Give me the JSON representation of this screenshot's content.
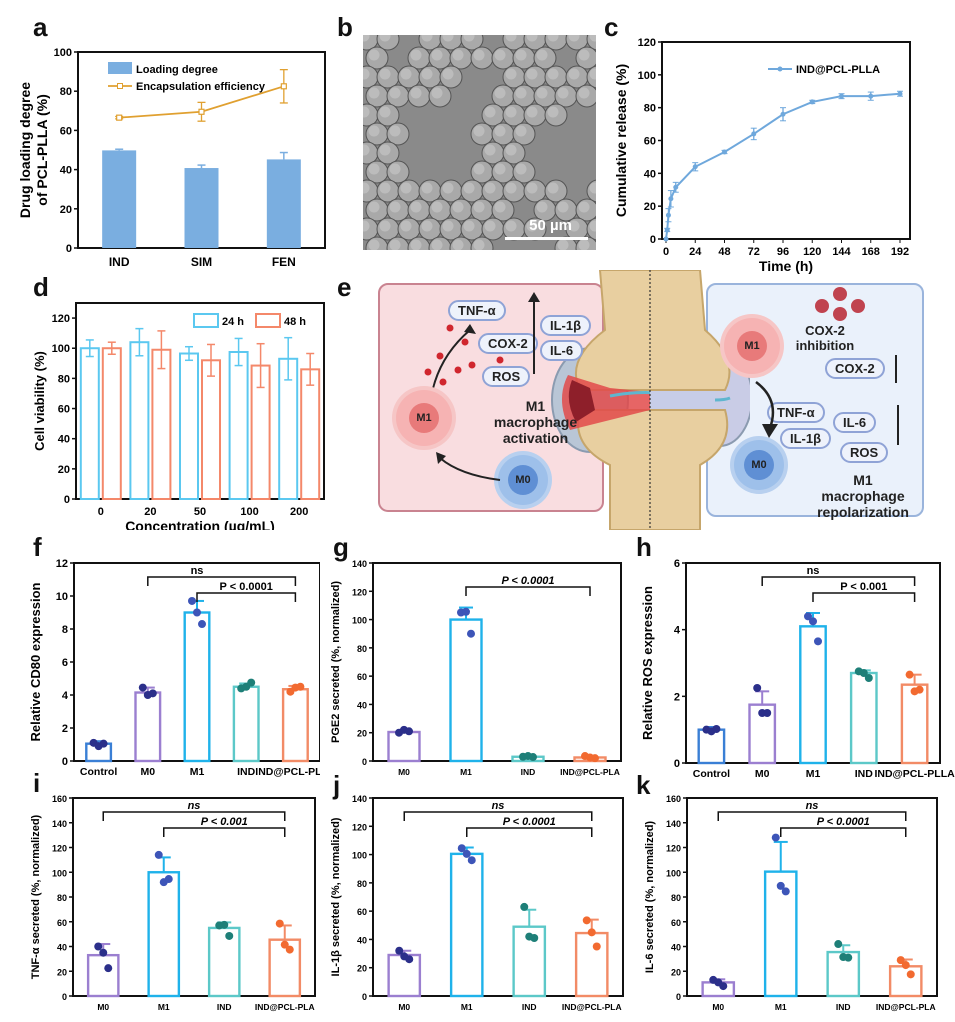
{
  "panel_labels": {
    "a": "a",
    "b": "b",
    "c": "c",
    "d": "d",
    "e": "e",
    "f": "f",
    "g": "g",
    "h": "h",
    "i": "i",
    "j": "j",
    "k": "k"
  },
  "sem_image": {
    "scale_bar": "50 µm"
  },
  "scheme": {
    "left": {
      "pills": [
        "TNF-α",
        "IL-1β",
        "COX-2",
        "IL-6",
        "ROS"
      ],
      "caption": [
        "M1",
        "macrophage",
        "activation"
      ],
      "cells": {
        "m1": "M1",
        "m0": "M0"
      }
    },
    "right": {
      "cox_label": [
        "COX-2",
        "inhibition"
      ],
      "pills": [
        "COX-2",
        "TNF-α",
        "IL-6",
        "IL-1β",
        "ROS"
      ],
      "caption": [
        "M1",
        "macrophage",
        "repolarization"
      ],
      "cells": {
        "m1": "M1",
        "m0": "M0"
      }
    }
  },
  "colors": {
    "blue_bar": "#7aaee0",
    "orange_line": "#e0a030",
    "light_blue": "#6fa8dc",
    "d24": "#5bc8f0",
    "d48": "#f4886a",
    "control": "#3a7fd5",
    "m0": "#9b7fd0",
    "m1": "#1fb2ea",
    "ind": "#5cc8c8",
    "indpcl": "#f28b66",
    "dot_dark": "#2b2f8a",
    "dot_blue": "#3d55b8",
    "dot_teal": "#1e7f78",
    "dot_orange": "#f26a30"
  },
  "chart_data": [
    {
      "id": "a",
      "type": "bar",
      "title": "",
      "categories": [
        "IND",
        "SIM",
        "FEN"
      ],
      "series": [
        {
          "name": "Loading degree",
          "kind": "bar",
          "values": [
            49.8,
            40.8,
            45.2
          ],
          "errors": [
            0.6,
            1.5,
            3.5
          ]
        },
        {
          "name": "Encapsulation efficiency",
          "kind": "line",
          "values": [
            66.5,
            69.5,
            82.5
          ],
          "errors": [
            0.6,
            4.8,
            8.5
          ]
        }
      ],
      "xlabel": "",
      "ylabel": "Drug loading degree of PCL-PLLA (%)",
      "ylabel_lines": [
        "Drug loading degree",
        "of PCL-PLLA (%)"
      ],
      "ylim": [
        0,
        100
      ],
      "yticks": [
        0,
        20,
        40,
        60,
        80,
        100
      ],
      "legend": "top-left",
      "grid": false
    },
    {
      "id": "c",
      "type": "line",
      "x": [
        0,
        1,
        2,
        4,
        8,
        24,
        48,
        72,
        96,
        120,
        144,
        168,
        192
      ],
      "series": [
        {
          "name": "IND@PCL-PLLA",
          "values": [
            0,
            5.5,
            14.5,
            24.5,
            31.5,
            44,
            53,
            64,
            76,
            83.5,
            87,
            87,
            88.5
          ],
          "errors": [
            0,
            1,
            4,
            5,
            3,
            2.5,
            1,
            3.5,
            4,
            1,
            1.5,
            2.5,
            1.5
          ]
        }
      ],
      "xlabel": "Time (h)",
      "ylabel": "Cumulative release (%)",
      "xlim": [
        0,
        192
      ],
      "xticks": [
        0,
        24,
        48,
        72,
        96,
        120,
        144,
        168,
        192
      ],
      "ylim": [
        0,
        120
      ],
      "yticks": [
        0,
        20,
        40,
        60,
        80,
        100,
        120
      ],
      "legend": "top-right",
      "grid": false
    },
    {
      "id": "d",
      "type": "bar",
      "categories": [
        "0",
        "20",
        "50",
        "100",
        "200"
      ],
      "series": [
        {
          "name": "24 h",
          "values": [
            100,
            104,
            96.5,
            97.5,
            93
          ],
          "errors": [
            5.5,
            9,
            4.5,
            9,
            14
          ]
        },
        {
          "name": "48 h",
          "values": [
            100,
            99,
            92,
            88.5,
            86
          ],
          "errors": [
            4,
            12.5,
            10.5,
            14.5,
            10.5
          ]
        }
      ],
      "xlabel": "Concentration (µg/mL)",
      "ylabel": "Cell viability (%)",
      "ylim": [
        0,
        130
      ],
      "yticks": [
        0,
        20,
        40,
        60,
        80,
        100,
        120
      ],
      "legend": "top-right",
      "grid": false
    },
    {
      "id": "f",
      "type": "bar",
      "categories": [
        "Control",
        "M0",
        "M1",
        "IND",
        "IND@PCL-PLLA"
      ],
      "values": [
        1.05,
        4.15,
        9.0,
        4.5,
        4.35
      ],
      "errors": [
        0.15,
        0.3,
        0.7,
        0.2,
        0.2
      ],
      "points": [
        [
          1.1,
          0.9,
          1.05
        ],
        [
          4.45,
          4.0,
          4.1
        ],
        [
          9.7,
          9.0,
          8.3
        ],
        [
          4.4,
          4.5,
          4.75
        ],
        [
          4.2,
          4.45,
          4.5
        ]
      ],
      "xlabel": "",
      "ylabel": "Relative CD80 expression",
      "ylim": [
        0,
        12
      ],
      "yticks": [
        0,
        2,
        4,
        6,
        8,
        10,
        12
      ],
      "annotations": [
        {
          "from": "M0",
          "to": "IND@PCL-PLLA",
          "text": "ns"
        },
        {
          "from": "M1",
          "to": "IND@PCL-PLLA",
          "text": "P < 0.0001"
        }
      ]
    },
    {
      "id": "g",
      "type": "bar",
      "categories": [
        "M0",
        "M1",
        "IND",
        "IND@PCL-PLA"
      ],
      "values": [
        20.5,
        100,
        3,
        2.5
      ],
      "errors": [
        1.2,
        8.5,
        0.8,
        0.8
      ],
      "points": [
        [
          20,
          22,
          21
        ],
        [
          105,
          105.5,
          90
        ],
        [
          3,
          3.5,
          2.8
        ],
        [
          3.5,
          2.5,
          2
        ]
      ],
      "xlabel": "",
      "ylabel": "PGE2 secreted (%, normalized)",
      "ylim": [
        0,
        140
      ],
      "yticks": [
        0,
        20,
        40,
        60,
        80,
        100,
        120,
        140
      ],
      "annotations": [
        {
          "from": "M1",
          "to": "IND@PCL-PLA",
          "text": "P < 0.0001"
        }
      ]
    },
    {
      "id": "h",
      "type": "bar",
      "categories": [
        "Control",
        "M0",
        "M1",
        "IND",
        "IND@PCL-PLLA"
      ],
      "values": [
        1.0,
        1.75,
        4.1,
        2.7,
        2.35
      ],
      "errors": [
        0.08,
        0.4,
        0.4,
        0.08,
        0.3
      ],
      "points": [
        [
          1.0,
          0.95,
          1.02
        ],
        [
          2.25,
          1.5,
          1.5
        ],
        [
          4.4,
          4.25,
          3.65
        ],
        [
          2.75,
          2.7,
          2.55
        ],
        [
          2.65,
          2.15,
          2.2
        ]
      ],
      "xlabel": "",
      "ylabel": "Relative ROS expression",
      "ylim": [
        0,
        6
      ],
      "yticks": [
        0,
        2,
        4,
        6
      ],
      "annotations": [
        {
          "from": "M0",
          "to": "IND@PCL-PLLA",
          "text": "ns"
        },
        {
          "from": "M1",
          "to": "IND@PCL-PLLA",
          "text": "P < 0.001"
        }
      ]
    },
    {
      "id": "i",
      "type": "bar",
      "categories": [
        "M0",
        "M1",
        "IND",
        "IND@PCL-PLA"
      ],
      "values": [
        33,
        100,
        55,
        45.5
      ],
      "errors": [
        9,
        12,
        4.5,
        11.5
      ],
      "points": [
        [
          40,
          35,
          22.5
        ],
        [
          114,
          92,
          94.5
        ],
        [
          57,
          57.5,
          48.5
        ],
        [
          58.5,
          41.5,
          37.5
        ]
      ],
      "xlabel": "",
      "ylabel": "TNF-α secreted (%, normalized)",
      "ylim": [
        0,
        160
      ],
      "yticks": [
        0,
        20,
        40,
        60,
        80,
        100,
        120,
        140,
        160
      ],
      "annotations": [
        {
          "from": "M0",
          "to": "IND@PCL-PLA",
          "text": "ns"
        },
        {
          "from": "M1",
          "to": "IND@PCL-PLA",
          "text": "P < 0.001"
        }
      ]
    },
    {
      "id": "j",
      "type": "bar",
      "categories": [
        "M0",
        "M1",
        "IND",
        "IND@PCL-PLA"
      ],
      "values": [
        29,
        100.5,
        49,
        44.5
      ],
      "errors": [
        3,
        4.5,
        12,
        9.5
      ],
      "points": [
        [
          32,
          28,
          26
        ],
        [
          104.5,
          100.5,
          96
        ],
        [
          63,
          42,
          41
        ],
        [
          53.5,
          45,
          35
        ]
      ],
      "xlabel": "",
      "ylabel": "IL-1β secreted (%, normalized)",
      "ylim": [
        0,
        140
      ],
      "yticks": [
        0,
        20,
        40,
        60,
        80,
        100,
        120,
        140
      ],
      "annotations": [
        {
          "from": "M0",
          "to": "IND@PCL-PLA",
          "text": "ns"
        },
        {
          "from": "M1",
          "to": "IND@PCL-PLA",
          "text": "P < 0.0001"
        }
      ]
    },
    {
      "id": "k",
      "type": "bar",
      "categories": [
        "M0",
        "M1",
        "IND",
        "IND@PCL-PLA"
      ],
      "values": [
        11,
        100.5,
        35.5,
        24
      ],
      "errors": [
        2.5,
        24,
        5.5,
        5.5
      ],
      "points": [
        [
          13,
          11,
          8
        ],
        [
          128,
          89,
          84.5
        ],
        [
          42,
          31.5,
          31
        ],
        [
          29,
          25,
          17.5
        ]
      ],
      "xlabel": "",
      "ylabel": "IL-6 secreted (%, normalized)",
      "ylim": [
        0,
        160
      ],
      "yticks": [
        0,
        20,
        40,
        60,
        80,
        100,
        120,
        140,
        160
      ],
      "annotations": [
        {
          "from": "M0",
          "to": "IND@PCL-PLA",
          "text": "ns"
        },
        {
          "from": "M1",
          "to": "IND@PCL-PLA",
          "text": "P < 0.0001"
        }
      ]
    }
  ]
}
